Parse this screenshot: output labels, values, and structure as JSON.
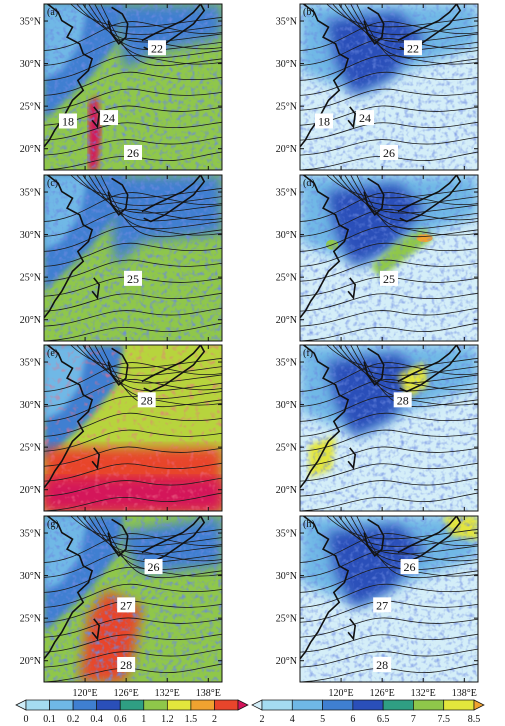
{
  "chart_data": {
    "type": "heatmap",
    "grid": false,
    "map_extent": {
      "lon": [
        114,
        140
      ],
      "lat": [
        17.5,
        37
      ]
    },
    "lat_ticks": [
      {
        "value": 20,
        "label": "20°N"
      },
      {
        "value": 25,
        "label": "25°N"
      },
      {
        "value": 30,
        "label": "30°N"
      },
      {
        "value": 35,
        "label": "35°N"
      }
    ],
    "lon_ticks": [
      {
        "value": 120,
        "label": "120°E"
      },
      {
        "value": 126,
        "label": "126°E"
      },
      {
        "value": 132,
        "label": "132°E"
      },
      {
        "value": 138,
        "label": "138°E"
      }
    ],
    "panels": [
      {
        "label": "(a)",
        "column": 0,
        "row": 0,
        "scale": "left",
        "contour_labels": [
          {
            "text": "22",
            "lon": 130.5,
            "lat": 31.8
          },
          {
            "text": "18",
            "lon": 117.5,
            "lat": 23.2
          },
          {
            "text": "24",
            "lon": 123.5,
            "lat": 23.6
          },
          {
            "text": "26",
            "lon": 127.0,
            "lat": 19.5
          }
        ]
      },
      {
        "label": "(b)",
        "column": 1,
        "row": 0,
        "scale": "right",
        "contour_labels": [
          {
            "text": "22",
            "lon": 130.5,
            "lat": 31.8
          },
          {
            "text": "18",
            "lon": 117.5,
            "lat": 23.2
          },
          {
            "text": "24",
            "lon": 123.5,
            "lat": 23.6
          },
          {
            "text": "26",
            "lon": 127.0,
            "lat": 19.5
          }
        ]
      },
      {
        "label": "(c)",
        "column": 0,
        "row": 1,
        "scale": "left",
        "contour_labels": [
          {
            "text": "25",
            "lon": 127.0,
            "lat": 24.8
          }
        ]
      },
      {
        "label": "(d)",
        "column": 1,
        "row": 1,
        "scale": "right",
        "contour_labels": [
          {
            "text": "25",
            "lon": 127.0,
            "lat": 24.8
          }
        ]
      },
      {
        "label": "(e)",
        "column": 0,
        "row": 2,
        "scale": "left",
        "contour_labels": [
          {
            "text": "28",
            "lon": 129.0,
            "lat": 30.5
          }
        ]
      },
      {
        "label": "(f)",
        "column": 1,
        "row": 2,
        "scale": "right",
        "contour_labels": [
          {
            "text": "28",
            "lon": 129.0,
            "lat": 30.5
          }
        ]
      },
      {
        "label": "(g)",
        "column": 0,
        "row": 3,
        "scale": "left",
        "contour_labels": [
          {
            "text": "26",
            "lon": 130.0,
            "lat": 31.0
          },
          {
            "text": "27",
            "lon": 126.0,
            "lat": 26.5
          },
          {
            "text": "28",
            "lon": 126.0,
            "lat": 19.5
          }
        ]
      },
      {
        "label": "(h)",
        "column": 1,
        "row": 3,
        "scale": "right",
        "contour_labels": [
          {
            "text": "26",
            "lon": 130.0,
            "lat": 31.0
          },
          {
            "text": "27",
            "lon": 126.0,
            "lat": 26.5
          },
          {
            "text": "28",
            "lon": 126.0,
            "lat": 19.5
          }
        ]
      }
    ],
    "colorbars": [
      {
        "side": "left",
        "labels": [
          "0",
          "0.1",
          "0.2",
          "0.4",
          "0.6",
          "1",
          "1.2",
          "1.5",
          "2"
        ],
        "colors": [
          "#cfeef9",
          "#a5dcf1",
          "#6fb8e6",
          "#3f7fd1",
          "#2a4fb9",
          "#2f9f83",
          "#8fc74a",
          "#e3e63c",
          "#f0a230",
          "#e8452b",
          "#d4145a"
        ]
      },
      {
        "side": "right",
        "labels": [
          "2",
          "4",
          "5",
          "6",
          "6.5",
          "7",
          "7.5",
          "8.5"
        ],
        "colors": [
          "#d4eef8",
          "#a5dcf1",
          "#6fb8e6",
          "#3f7fd1",
          "#2a4fb9",
          "#2f9f83",
          "#8fc74a",
          "#e3e63c",
          "#f0a230"
        ]
      }
    ]
  }
}
